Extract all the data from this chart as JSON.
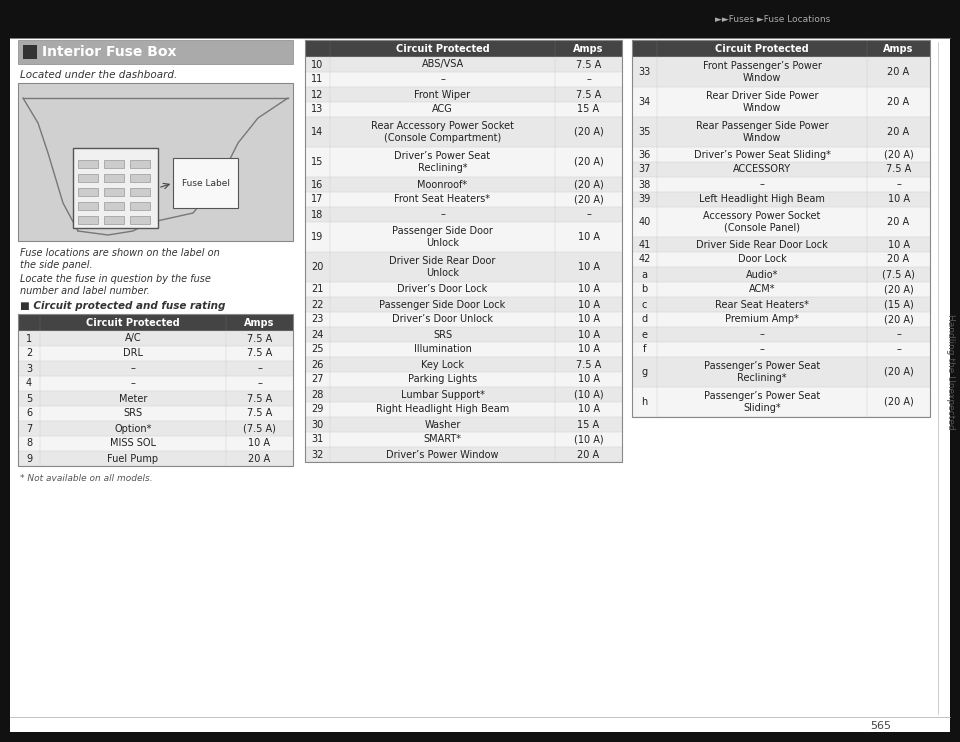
{
  "bg_color": "#111111",
  "page_bg": "#ffffff",
  "header_text": "►►Fuses ►Fuse Locations",
  "page_number": "565",
  "sidebar_text": "Handling the Unexpected",
  "title_left": "Interior Fuse Box",
  "desc_line1": "Located under the dashboard.",
  "desc_line2": "Fuse locations are shown on the label on",
  "desc_line3": "the side panel.",
  "desc_line4": "Locate the fuse in question by the fuse",
  "desc_line5": "number and label number.",
  "subheading": "■ Circuit protected and fuse rating",
  "footnote": "* Not available on all models.",
  "row_bg_odd": "#e8e8e8",
  "row_bg_even": "#f5f5f5",
  "header_bg": "#444444",
  "title_bg": "#999999",
  "table1_rows": [
    [
      "1",
      "A/C",
      "7.5 A"
    ],
    [
      "2",
      "DRL",
      "7.5 A"
    ],
    [
      "3",
      "–",
      "–"
    ],
    [
      "4",
      "–",
      "–"
    ],
    [
      "5",
      "Meter",
      "7.5 A"
    ],
    [
      "6",
      "SRS",
      "7.5 A"
    ],
    [
      "7",
      "Option*",
      "(7.5 A)"
    ],
    [
      "8",
      "MISS SOL",
      "10 A"
    ],
    [
      "9",
      "Fuel Pump",
      "20 A"
    ]
  ],
  "table2_rows": [
    [
      "10",
      "ABS/VSA",
      "7.5 A"
    ],
    [
      "11",
      "–",
      "–"
    ],
    [
      "12",
      "Front Wiper",
      "7.5 A"
    ],
    [
      "13",
      "ACG",
      "15 A"
    ],
    [
      "14",
      "Rear Accessory Power Socket\n(Console Compartment)",
      "(20 A)"
    ],
    [
      "15",
      "Driver’s Power Seat\nReclining*",
      "(20 A)"
    ],
    [
      "16",
      "Moonroof*",
      "(20 A)"
    ],
    [
      "17",
      "Front Seat Heaters*",
      "(20 A)"
    ],
    [
      "18",
      "–",
      "–"
    ],
    [
      "19",
      "Passenger Side Door\nUnlock",
      "10 A"
    ],
    [
      "20",
      "Driver Side Rear Door\nUnlock",
      "10 A"
    ],
    [
      "21",
      "Driver’s Door Lock",
      "10 A"
    ],
    [
      "22",
      "Passenger Side Door Lock",
      "10 A"
    ],
    [
      "23",
      "Driver’s Door Unlock",
      "10 A"
    ],
    [
      "24",
      "SRS",
      "10 A"
    ],
    [
      "25",
      "Illumination",
      "10 A"
    ],
    [
      "26",
      "Key Lock",
      "7.5 A"
    ],
    [
      "27",
      "Parking Lights",
      "10 A"
    ],
    [
      "28",
      "Lumbar Support*",
      "(10 A)"
    ],
    [
      "29",
      "Right Headlight High Beam",
      "10 A"
    ],
    [
      "30",
      "Washer",
      "15 A"
    ],
    [
      "31",
      "SMART*",
      "(10 A)"
    ],
    [
      "32",
      "Driver’s Power Window",
      "20 A"
    ]
  ],
  "table3_rows": [
    [
      "33",
      "Front Passenger’s Power\nWindow",
      "20 A"
    ],
    [
      "34",
      "Rear Driver Side Power\nWindow",
      "20 A"
    ],
    [
      "35",
      "Rear Passenger Side Power\nWindow",
      "20 A"
    ],
    [
      "36",
      "Driver’s Power Seat Sliding*",
      "(20 A)"
    ],
    [
      "37",
      "ACCESSORY",
      "7.5 A"
    ],
    [
      "38",
      "–",
      "–"
    ],
    [
      "39",
      "Left Headlight High Beam",
      "10 A"
    ],
    [
      "40",
      "Accessory Power Socket\n(Console Panel)",
      "20 A"
    ],
    [
      "41",
      "Driver Side Rear Door Lock",
      "10 A"
    ],
    [
      "42",
      "Door Lock",
      "20 A"
    ],
    [
      "a",
      "Audio*",
      "(7.5 A)"
    ],
    [
      "b",
      "ACM*",
      "(20 A)"
    ],
    [
      "c",
      "Rear Seat Heaters*",
      "(15 A)"
    ],
    [
      "d",
      "Premium Amp*",
      "(20 A)"
    ],
    [
      "e",
      "–",
      "–"
    ],
    [
      "f",
      "–",
      "–"
    ],
    [
      "g",
      "Passenger’s Power Seat\nReclining*",
      "(20 A)"
    ],
    [
      "h",
      "Passenger’s Power Seat\nSliding*",
      "(20 A)"
    ]
  ]
}
